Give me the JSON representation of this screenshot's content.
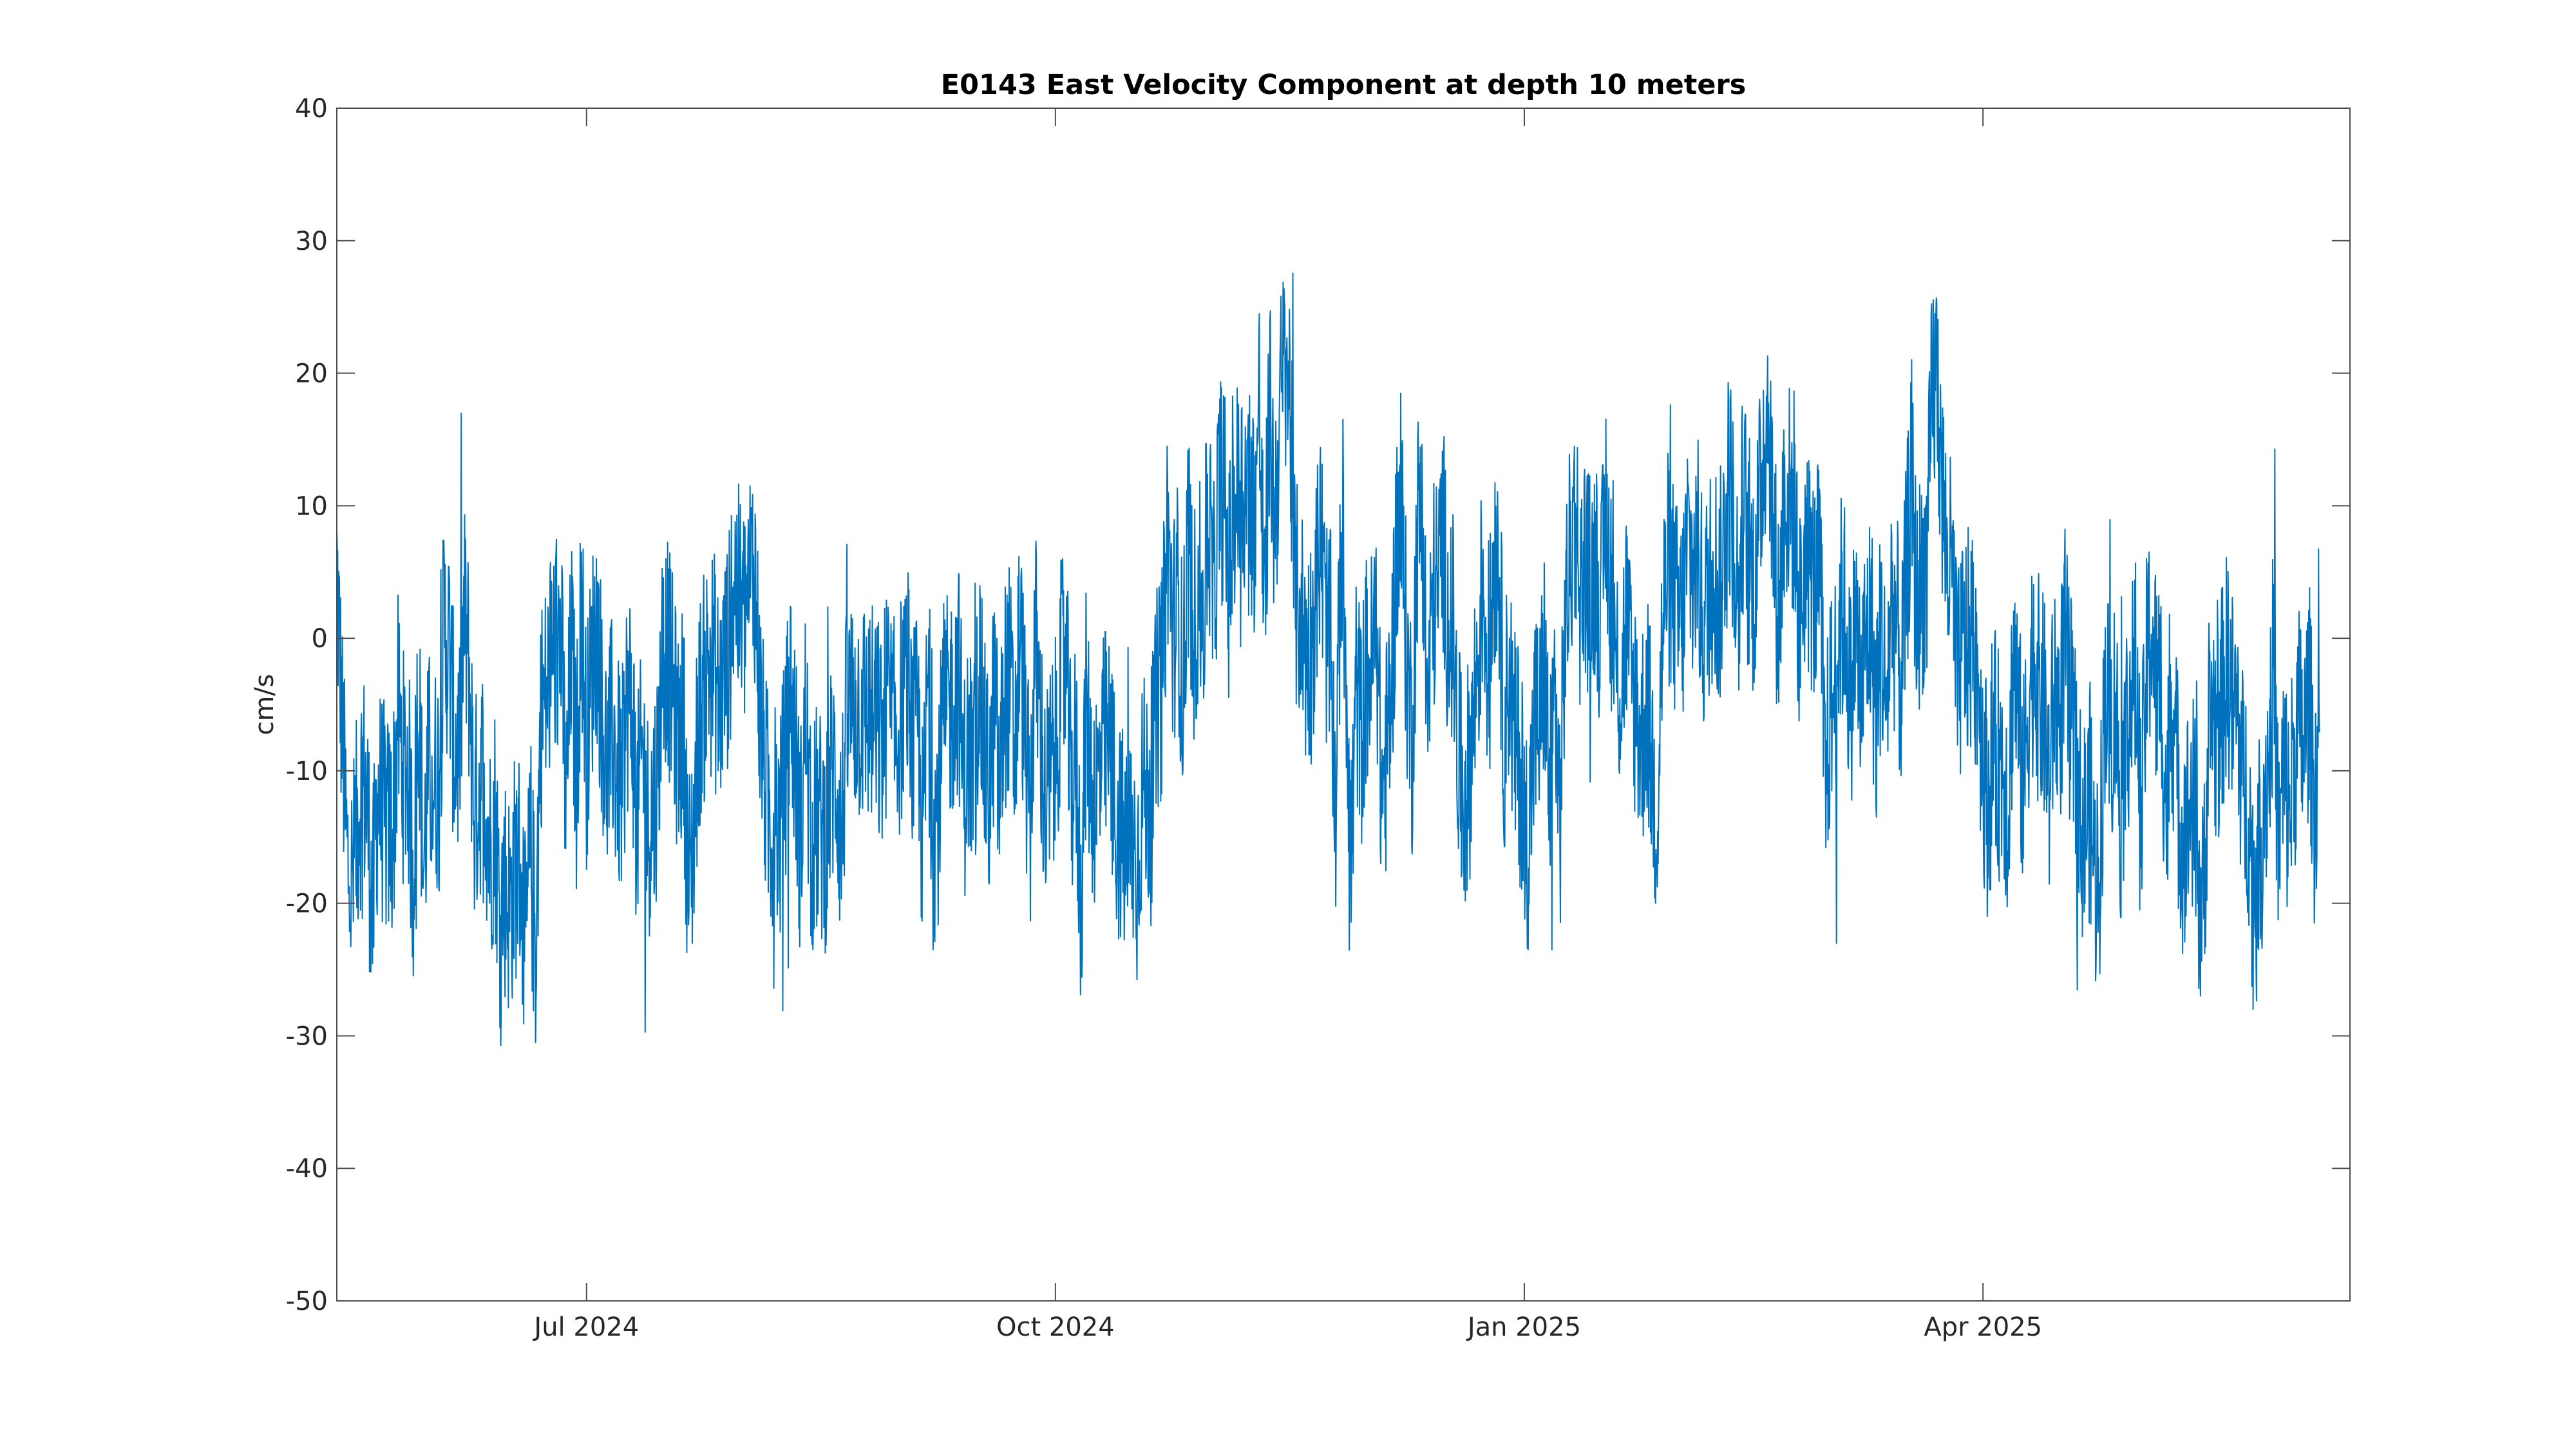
{
  "chart_data": {
    "type": "line",
    "title": "E0143 East Velocity Component at depth 10 meters",
    "xlabel": "",
    "ylabel": "cm/s",
    "x_range": [
      "2024-05-13",
      "2025-06-12"
    ],
    "ylim": [
      -50,
      40
    ],
    "y_ticks": [
      40,
      30,
      20,
      10,
      0,
      -10,
      -20,
      -30,
      -40,
      -50
    ],
    "x_ticks": [
      {
        "date": "2024-07-01",
        "label": "Jul 2024"
      },
      {
        "date": "2024-10-01",
        "label": "Oct 2024"
      },
      {
        "date": "2025-01-01",
        "label": "Jan 2025"
      },
      {
        "date": "2025-04-01",
        "label": "Apr 2025"
      }
    ],
    "grid": false,
    "legend": "none",
    "color": "#0072BD",
    "series": [
      {
        "values_daily": [
          5.3,
          -6.6,
          -16.6,
          -18.7,
          -14.4,
          -10.3,
          -12.8,
          -21.2,
          -11.6,
          -13.1,
          -14.6,
          -14.3,
          -5.6,
          -9.6,
          -9.8,
          -17.9,
          -3.3,
          -17.5,
          -9.5,
          -11.0,
          -10.1,
          0.6,
          -0.7,
          -7.7,
          -8.7,
          1.5,
          -2.9,
          -13.5,
          -10.9,
          -10.2,
          -16.3,
          -13.3,
          -20.6,
          -18.5,
          -20.3,
          -17.0,
          -17.0,
          -24.1,
          -15.9,
          -23.5,
          -5.6,
          -4.5,
          -2.1,
          -0.2,
          -0.3,
          -13.2,
          -0.3,
          -10.4,
          3.0,
          -8.5,
          -2.2,
          1.2,
          -5.2,
          -10.0,
          -6.9,
          -10.2,
          -11.5,
          -4.2,
          -6.0,
          -13.4,
          -8.5,
          -13.8,
          -13.1,
          -9.8,
          0.2,
          -1.3,
          -4.5,
          -8.1,
          -6.0,
          -19.2,
          -14.7,
          -5.9,
          -4.0,
          -1.6,
          -2.0,
          -5.2,
          -2.6,
          -0.4,
          5.1,
          2.2,
          1.7,
          4.4,
          5.4,
          -5.0,
          -10.6,
          -14.2,
          -13.1,
          -14.2,
          -9.5,
          -3.5,
          -9.2,
          -15.6,
          -5.4,
          -16.3,
          -13.8,
          -14.4,
          -14.9,
          -10.4,
          -10.0,
          -15.3,
          -6.5,
          -5.0,
          -5.1,
          -5.5,
          -5.5,
          -6.1,
          -6.9,
          -8.4,
          -3.7,
          -7.3,
          -7.1,
          -4.9,
          -2.8,
          -8.5,
          -6.6,
          -16.0,
          -2.4,
          -14.6,
          -12.7,
          -6.3,
          -5.5,
          -4.6,
          -2.5,
          -11.5,
          -8.1,
          -10.6,
          -2.2,
          -8.6,
          -11.9,
          -4.6,
          -11.9,
          -4.2,
          -2.9,
          -9.3,
          0.9,
          -7.0,
          -14.5,
          0.1,
          -6.3,
          -13.1,
          -10.6,
          -8.9,
          -3.2,
          -1.3,
          -11.2,
          -9.1,
          -19.9,
          -5.5,
          -10.9,
          -11.7,
          -9.5,
          -7.5,
          -9.9,
          -13.8,
          -15.2,
          -16.7,
          -14.7,
          -17.8,
          -11.3,
          -11.9,
          -10.9,
          -4.4,
          -3.0,
          8.9,
          0.1,
          3.4,
          -4.3,
          7.8,
          0.3,
          3.5,
          1.5,
          10.0,
          2.1,
          11.0,
          11.6,
          3.7,
          10.6,
          11.0,
          11.3,
          11.1,
          9.1,
          17.8,
          0.9,
          17.7,
          8.5,
          16.5,
          21.2,
          18.4,
          3.0,
          2.5,
          -0.6,
          -1.4,
          3.3,
          7.8,
          1.0,
          -0.9,
          -13.1,
          7.0,
          -0.0,
          -17.6,
          -3.8,
          -7.0,
          -2.5,
          -2.1,
          1.0,
          -12.3,
          -8.6,
          -2.9,
          7.9,
          8.0,
          -2.1,
          -7.8,
          8.3,
          9.9,
          -6.2,
          3.3,
          3.6,
          8.4,
          1.1,
          0.6,
          -8.9,
          -12.5,
          -10.5,
          -6.5,
          -0.5,
          4.8,
          -4.3,
          6.4,
          6.7,
          -8.1,
          -1.7,
          -8.3,
          -8.9,
          -14.8,
          -14.5,
          -6.3,
          -6.8,
          -1.5,
          -12.8,
          -3.9,
          -14.1,
          0.9,
          5.9,
          10.0,
          3.2,
          5.9,
          3.3,
          6.1,
          1.3,
          10.0,
          3.8,
          -2.0,
          -3.6,
          2.0,
          -3.9,
          -4.9,
          -8.0,
          -4.3,
          -9.4,
          -13.6,
          -0.7,
          5.6,
          3.9,
          1.3,
          1.1,
          7.5,
          4.8,
          6.6,
          1.2,
          2.8,
          8.2,
          2.5,
          5.9,
          13.0,
          8.7,
          2.1,
          11.4,
          5.5,
          4.3,
          8.3,
          15.5,
          17.8,
          6.8,
          1.0,
          11.5,
          10.5,
          10.2,
          0.4,
          6.3,
          5.4,
          3.2,
          5.6,
          -11.5,
          -5.6,
          -3.5,
          2.0,
          1.7,
          -5.0,
          1.8,
          -4.8,
          -0.4,
          1.5,
          -6.2,
          0.8,
          -5.3,
          2.8,
          1.1,
          -3.9,
          5.3,
          12.2,
          1.9,
          4.7,
          4.9,
          18.4,
          20.0,
          11.1,
          5.7,
          4.5,
          -4.3,
          -0.7,
          -0.7,
          0.2,
          -2.4,
          -9.0,
          -12.7,
          -7.6,
          -9.4,
          -9.3,
          -13.1,
          -0.5,
          -6.8,
          -11.4,
          -4.2,
          -0.6,
          -4.4,
          -5.5,
          -11.2,
          -3.6,
          -6.3,
          -0.2,
          -4.6,
          -9.0,
          -13.6,
          -14.5,
          -12.2,
          -18.1,
          -16.4,
          -2.8,
          -7.3,
          -4.7,
          -12.9,
          -7.6,
          -4.2,
          -2.8,
          -14.4,
          -3.2,
          1.3,
          -3.7,
          -4.1,
          -13.7,
          -3.9,
          -10.0,
          -15.0,
          -14.1,
          -11.9,
          -16.4,
          -21.8,
          -10.9,
          -4.7,
          -8.3,
          -4.4,
          -1.9,
          -5.3,
          -5.9,
          -11.3,
          -11.9,
          -19.1,
          -16.7,
          -11.6,
          -9.3,
          -1.5,
          -16.2,
          -10.0,
          -13.4,
          -9.0,
          -6.4,
          -8.2,
          -4.2,
          -12.6,
          -7.1
        ]
      }
    ]
  }
}
